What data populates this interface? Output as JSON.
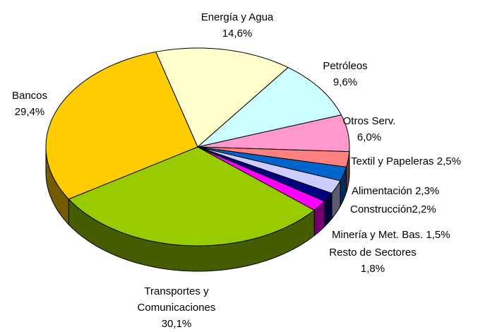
{
  "chart_data": {
    "type": "pie3d",
    "categories": [
      "Energía y Agua",
      "Petróleos",
      "Otros Serv.",
      "Textil y Papeleras",
      "Alimentación",
      "Construcción",
      "Minería y Met. Bas.",
      "Resto de Sectores",
      "Transportes y Comunicaciones",
      "Bancos"
    ],
    "values": [
      14.6,
      9.6,
      6.0,
      2.5,
      2.3,
      2.2,
      1.5,
      1.8,
      30.1,
      29.4
    ],
    "value_labels": [
      "14,6%",
      "9,6%",
      "6,0%",
      "2,5%",
      "2,3%",
      "2,2%",
      "1,5%",
      "1,8%",
      "30,1%",
      "29,4%"
    ],
    "colors": [
      "#ffffcc",
      "#ccffff",
      "#ff99cc",
      "#ff8080",
      "#0066cc",
      "#ccccff",
      "#000080",
      "#ff00ff",
      "#99cc00",
      "#ffcc00"
    ]
  }
}
